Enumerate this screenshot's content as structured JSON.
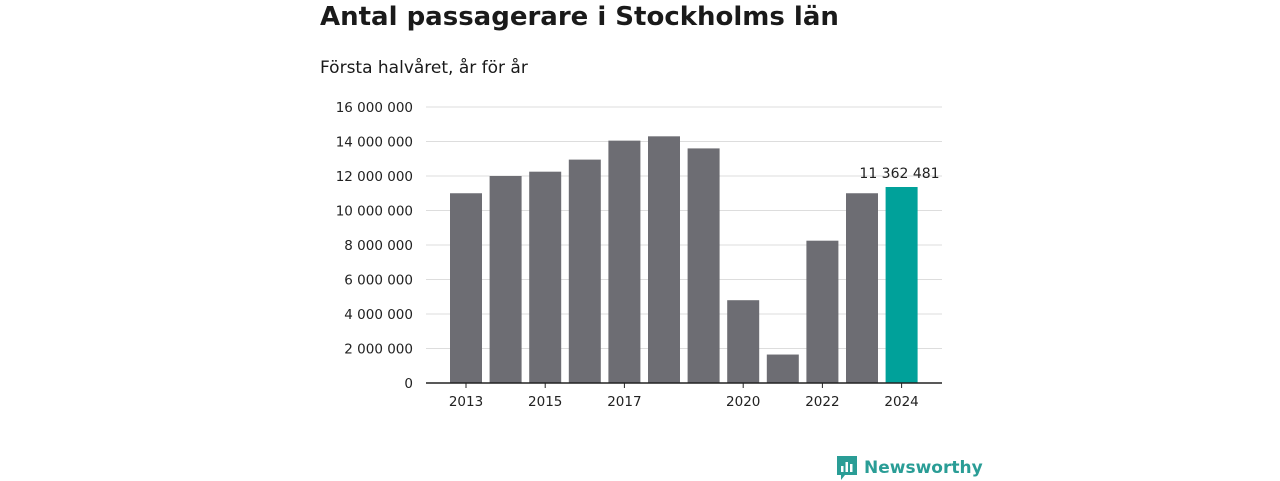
{
  "colors": {
    "bar": "#6d6d73",
    "highlight": "#00a19a",
    "grid": "#dddddd",
    "axis": "#222222",
    "brand": "#2a9d96"
  },
  "brand": {
    "name": "Newsworthy",
    "icon": "bar-chart-badge-icon"
  },
  "chart_data": {
    "type": "bar",
    "title": "Antal passagerare i Stockholms län",
    "subtitle": "Första halvåret, år för år",
    "xlabel": "",
    "ylabel": "",
    "ylim": [
      0,
      16000000
    ],
    "grid": true,
    "yticks": [
      {
        "value": 0,
        "label": "0"
      },
      {
        "value": 2000000,
        "label": "2 000 000"
      },
      {
        "value": 4000000,
        "label": "4 000 000"
      },
      {
        "value": 6000000,
        "label": "6 000 000"
      },
      {
        "value": 8000000,
        "label": "8 000 000"
      },
      {
        "value": 10000000,
        "label": "10 000 000"
      },
      {
        "value": 12000000,
        "label": "12 000 000"
      },
      {
        "value": 14000000,
        "label": "14 000 000"
      },
      {
        "value": 16000000,
        "label": "16 000 000"
      }
    ],
    "xtick_labels": [
      "2013",
      "2015",
      "2017",
      "2020",
      "2022",
      "2024"
    ],
    "categories": [
      "2013",
      "2014",
      "2015",
      "2016",
      "2017",
      "2018",
      "2019",
      "2020",
      "2021",
      "2022",
      "2023",
      "2024"
    ],
    "values": [
      11000000,
      12000000,
      12250000,
      12950000,
      14050000,
      14300000,
      13600000,
      4800000,
      1650000,
      8250000,
      11000000,
      11362481
    ],
    "highlight_index": 11,
    "annotations": [
      {
        "category": "2024",
        "label": "11 362 481"
      }
    ]
  }
}
